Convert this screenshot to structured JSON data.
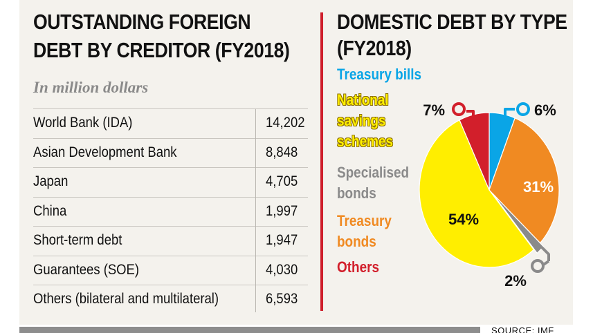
{
  "chart_data": [
    {
      "type": "table",
      "title": "OUTSTANDING FOREIGN DEBT BY CREDITOR (FY2018)",
      "title_lines": [
        "OUTSTANDING FOREIGN",
        "DEBT BY CREDITOR (FY2018)"
      ],
      "subtitle": "In million dollars",
      "rows": [
        {
          "label": "World Bank (IDA)",
          "value": "14,202"
        },
        {
          "label": "Asian Development Bank",
          "value": "8,848"
        },
        {
          "label": "Japan",
          "value": "4,705"
        },
        {
          "label": "China",
          "value": "1,997"
        },
        {
          "label": "Short-term debt",
          "value": "1,947"
        },
        {
          "label": "Guarantees (SOE)",
          "value": "4,030"
        },
        {
          "label": "Others (bilateral and multilateral)",
          "value": "6,593"
        }
      ]
    },
    {
      "type": "pie",
      "title": "DOMESTIC DEBT BY TYPE (FY2018)",
      "title_lines": [
        "DOMESTIC DEBT BY TYPE",
        "(FY2018)"
      ],
      "slices": [
        {
          "name": "Treasury bills",
          "legend_lines": [
            "Treasury bills"
          ],
          "value": 6,
          "label": "6%",
          "color": "#0aa5e6"
        },
        {
          "name": "Treasury bonds",
          "legend_lines": [
            "Treasury",
            "bonds"
          ],
          "value": 31,
          "label": "31%",
          "color": "#f08a22"
        },
        {
          "name": "Specialised bonds",
          "legend_lines": [
            "Specialised",
            "bonds"
          ],
          "value": 2,
          "label": "2%",
          "color": "#8a8a8a"
        },
        {
          "name": "National savings schemes",
          "legend_lines": [
            "National",
            "savings",
            "schemes"
          ],
          "value": 54,
          "label": "54%",
          "color": "#ffee00"
        },
        {
          "name": "Others",
          "legend_lines": [
            "Others"
          ],
          "value": 7,
          "label": "7%",
          "color": "#d21f2b"
        }
      ]
    }
  ],
  "footer": {
    "source": "SOURCE: IMF"
  }
}
